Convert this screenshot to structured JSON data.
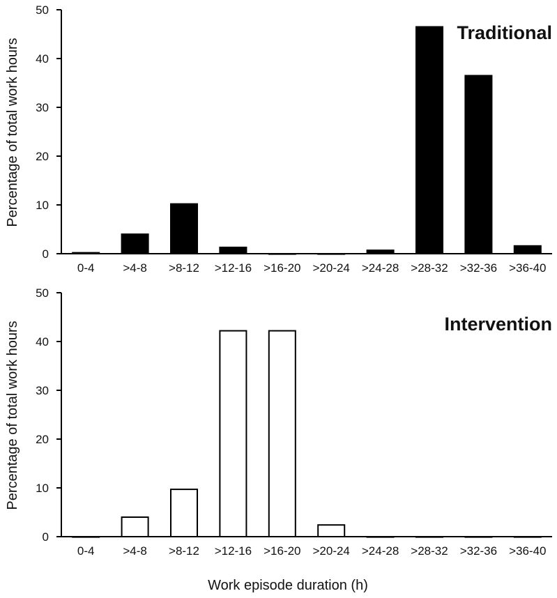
{
  "chart_data": [
    {
      "type": "bar",
      "title": "Traditional",
      "xlabel": "",
      "ylabel": "Percentage of total work hours",
      "ylim": [
        0,
        50
      ],
      "yticks": [
        0,
        10,
        20,
        30,
        40,
        50
      ],
      "categories": [
        "0-4",
        ">4-8",
        ">8-12",
        ">12-16",
        ">16-20",
        ">20-24",
        ">24-28",
        ">28-32",
        ">32-36",
        ">36-40"
      ],
      "values": [
        0.2,
        4.0,
        10.2,
        1.3,
        0.0,
        0.0,
        0.7,
        46.5,
        36.5,
        1.6
      ],
      "bar_fill": "#000000",
      "bar_stroke": "#000000",
      "grid": false
    },
    {
      "type": "bar",
      "title": "Intervention",
      "xlabel": "Work episode duration (h)",
      "ylabel": "Percentage of total work hours",
      "ylim": [
        0,
        50
      ],
      "yticks": [
        0,
        10,
        20,
        30,
        40,
        50
      ],
      "categories": [
        "0-4",
        ">4-8",
        ">8-12",
        ">12-16",
        ">16-20",
        ">20-24",
        ">24-28",
        ">28-32",
        ">32-36",
        ">36-40"
      ],
      "values": [
        0.0,
        4.0,
        9.7,
        42.2,
        42.2,
        2.4,
        0.0,
        0.0,
        0.0,
        0.0
      ],
      "bar_fill": "#ffffff",
      "bar_stroke": "#000000",
      "grid": false
    }
  ]
}
